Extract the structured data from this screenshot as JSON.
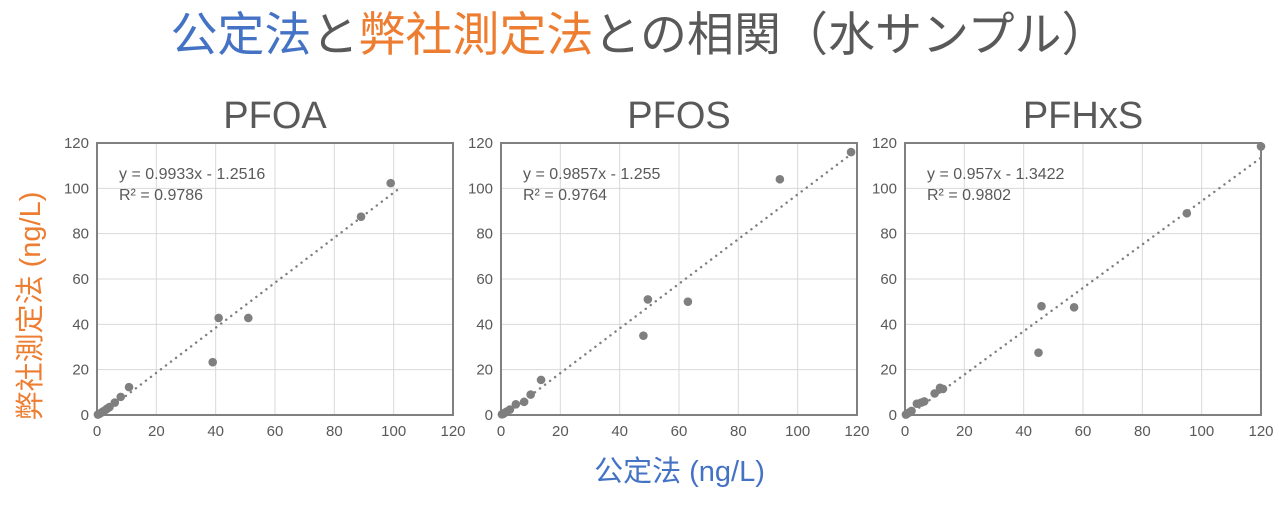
{
  "title": {
    "part1": "公定法",
    "part2": "と",
    "part3": "弊社測定法",
    "part4": "との相関（水サンプル）"
  },
  "axes": {
    "x_label": "公定法 (ng/L)",
    "y_label": "弊社測定法 (ng/L)"
  },
  "colors": {
    "blue": "#4472C4",
    "orange": "#ED7D31",
    "gray_text": "#595959",
    "marker": "#7F7F7F",
    "trendline": "#7F7F7F",
    "gridline": "#D9D9D9",
    "plot_border": "#808080"
  },
  "chart_data": [
    {
      "type": "scatter",
      "title": "PFOA",
      "xlabel": "公定法 (ng/L)",
      "ylabel": "弊社測定法 (ng/L)",
      "equation": "y = 0.9933x - 1.2516",
      "r_squared": "R² = 0.9786",
      "xlim": [
        0,
        120
      ],
      "ylim": [
        0,
        120
      ],
      "xticks": [
        0,
        20,
        40,
        60,
        80,
        100,
        120
      ],
      "yticks": [
        0,
        20,
        40,
        60,
        80,
        100,
        120
      ],
      "grid": true,
      "legend": false,
      "trend": {
        "slope": 0.9933,
        "intercept": -1.2516,
        "x_start": 1.26,
        "x_end": 101.5
      },
      "points": [
        [
          0.3,
          0.2
        ],
        [
          0.8,
          0.5
        ],
        [
          1.3,
          0.9
        ],
        [
          2,
          1.5
        ],
        [
          2.7,
          2.1
        ],
        [
          3.4,
          2.8
        ],
        [
          4.2,
          3.5
        ],
        [
          6,
          5.5
        ],
        [
          8,
          8
        ],
        [
          10.8,
          12.3
        ],
        [
          39,
          23.3
        ],
        [
          41,
          42.8
        ],
        [
          51,
          42.8
        ],
        [
          89,
          87.5
        ],
        [
          99,
          102.3
        ]
      ]
    },
    {
      "type": "scatter",
      "title": "PFOS",
      "xlabel": "公定法 (ng/L)",
      "ylabel": "弊社測定法 (ng/L)",
      "equation": "y = 0.9857x - 1.255",
      "r_squared": "R² = 0.9764",
      "xlim": [
        0,
        120
      ],
      "ylim": [
        0,
        120
      ],
      "xticks": [
        0,
        20,
        40,
        60,
        80,
        100,
        120
      ],
      "yticks": [
        0,
        20,
        40,
        60,
        80,
        100,
        120
      ],
      "grid": true,
      "legend": false,
      "trend": {
        "slope": 0.9857,
        "intercept": -1.255,
        "x_start": 1.27,
        "x_end": 118.5
      },
      "points": [
        [
          0.3,
          0.3
        ],
        [
          0.8,
          0.5
        ],
        [
          1.3,
          1
        ],
        [
          2,
          1.6
        ],
        [
          3,
          2.4
        ],
        [
          5,
          4.7
        ],
        [
          7.8,
          5.8
        ],
        [
          10,
          9
        ],
        [
          13.5,
          15.5
        ],
        [
          48,
          35
        ],
        [
          49.5,
          51
        ],
        [
          63,
          50
        ],
        [
          94,
          104
        ],
        [
          118,
          116
        ]
      ]
    },
    {
      "type": "scatter",
      "title": "PFHxS",
      "xlabel": "公定法 (ng/L)",
      "ylabel": "弊社測定法 (ng/L)",
      "equation": "y = 0.957x - 1.3422",
      "r_squared": "R² = 0.9802",
      "xlim": [
        0,
        120
      ],
      "ylim": [
        0,
        120
      ],
      "xticks": [
        0,
        20,
        40,
        60,
        80,
        100,
        120
      ],
      "yticks": [
        0,
        20,
        40,
        60,
        80,
        100,
        120
      ],
      "grid": true,
      "legend": false,
      "trend": {
        "slope": 0.957,
        "intercept": -1.3422,
        "x_start": 1.4,
        "x_end": 120
      },
      "points": [
        [
          0.3,
          0.2
        ],
        [
          0.8,
          0.6
        ],
        [
          1.5,
          1.2
        ],
        [
          2.2,
          1.8
        ],
        [
          4,
          5
        ],
        [
          5.5,
          5.5
        ],
        [
          6.5,
          6
        ],
        [
          10,
          9.5
        ],
        [
          11.8,
          12
        ],
        [
          12.8,
          11.5
        ],
        [
          45,
          27.5
        ],
        [
          46,
          48
        ],
        [
          57,
          47.5
        ],
        [
          95,
          89
        ],
        [
          120,
          118.5
        ]
      ]
    }
  ]
}
